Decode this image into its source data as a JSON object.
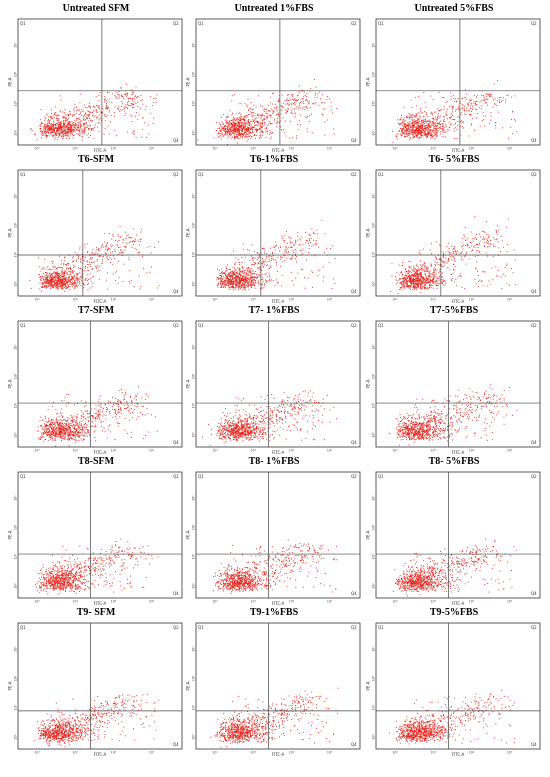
{
  "chart_data": [
    {
      "type": "scatter",
      "title": "Untreated SFM",
      "xlabel": "FITC-A",
      "ylabel": "PE-A",
      "quadrants": [
        "Q1",
        "Q2",
        "Q3",
        "Q4"
      ],
      "x_ticks": [
        "10²",
        "10³",
        "10⁴",
        "10⁵"
      ],
      "y_ticks": [
        "10²",
        "10³",
        "10⁴",
        "10⁵"
      ],
      "gate": {
        "x": 3.7,
        "y": 3.35
      },
      "xlim": [
        1.5,
        5.8
      ],
      "ylim": [
        1.5,
        5.8
      ]
    },
    {
      "type": "scatter",
      "title": "Untreated 1%FBS",
      "xlabel": "FITC-A",
      "ylabel": "PE-A",
      "quadrants": [
        "Q1",
        "Q2",
        "Q3",
        "Q4"
      ],
      "x_ticks": [
        "10²",
        "10³",
        "10⁴",
        "10⁵"
      ],
      "y_ticks": [
        "10²",
        "10³",
        "10⁴",
        "10⁵"
      ],
      "gate": {
        "x": 3.7,
        "y": 3.35
      },
      "xlim": [
        1.5,
        5.8
      ],
      "ylim": [
        1.5,
        5.8
      ]
    },
    {
      "type": "scatter",
      "title": "Untreated 5%FBS",
      "xlabel": "FITC-A",
      "ylabel": "PE-A",
      "quadrants": [
        "Q1",
        "Q2",
        "Q3",
        "Q4"
      ],
      "x_ticks": [
        "10²",
        "10³",
        "10⁴",
        "10⁵"
      ],
      "y_ticks": [
        "10²",
        "10³",
        "10⁴",
        "10⁵"
      ],
      "gate": {
        "x": 3.7,
        "y": 3.35
      },
      "xlim": [
        1.5,
        5.8
      ],
      "ylim": [
        1.5,
        5.8
      ]
    },
    {
      "type": "scatter",
      "title": "T6-SFM",
      "xlabel": "FITC-A",
      "ylabel": "PE-A",
      "quadrants": [
        "Q1",
        "Q2",
        "Q3",
        "Q4"
      ],
      "x_ticks": [
        "10²",
        "10³",
        "10⁴",
        "10⁵"
      ],
      "y_ticks": [
        "10²",
        "10³",
        "10⁴",
        "10⁵"
      ],
      "gate": {
        "x": 3.2,
        "y": 2.9
      },
      "xlim": [
        1.5,
        5.8
      ],
      "ylim": [
        1.5,
        5.8
      ]
    },
    {
      "type": "scatter",
      "title": "T6-1%FBS",
      "xlabel": "FITC-A",
      "ylabel": "PE-A",
      "quadrants": [
        "Q1",
        "Q2",
        "Q3",
        "Q4"
      ],
      "x_ticks": [
        "10²",
        "10³",
        "10⁴",
        "10⁵"
      ],
      "y_ticks": [
        "10²",
        "10³",
        "10⁴",
        "10⁵"
      ],
      "gate": {
        "x": 3.2,
        "y": 2.9
      },
      "xlim": [
        1.5,
        5.8
      ],
      "ylim": [
        1.5,
        5.8
      ]
    },
    {
      "type": "scatter",
      "title": "T6- 5%FBS",
      "xlabel": "FITC-A",
      "ylabel": "PE-A",
      "quadrants": [
        "Q1",
        "Q2",
        "Q3",
        "Q4"
      ],
      "x_ticks": [
        "10²",
        "10³",
        "10⁴",
        "10⁵"
      ],
      "y_ticks": [
        "10²",
        "10³",
        "10⁴",
        "10⁵"
      ],
      "gate": {
        "x": 3.2,
        "y": 2.9
      },
      "xlim": [
        1.5,
        5.8
      ],
      "ylim": [
        1.5,
        5.8
      ]
    },
    {
      "type": "scatter",
      "title": "T7-SFM",
      "xlabel": "FITC-A",
      "ylabel": "PE-A",
      "quadrants": [
        "Q1",
        "Q2",
        "Q3",
        "Q4"
      ],
      "x_ticks": [
        "10²",
        "10³",
        "10⁴",
        "10⁵"
      ],
      "y_ticks": [
        "10²",
        "10³",
        "10⁴",
        "10⁵"
      ],
      "gate": {
        "x": 3.4,
        "y": 3.0
      },
      "xlim": [
        1.5,
        5.8
      ],
      "ylim": [
        1.5,
        5.8
      ]
    },
    {
      "type": "scatter",
      "title": "T7- 1%FBS",
      "xlabel": "FITC-A",
      "ylabel": "PE-A",
      "quadrants": [
        "Q1",
        "Q2",
        "Q3",
        "Q4"
      ],
      "x_ticks": [
        "10²",
        "10³",
        "10⁴",
        "10⁵"
      ],
      "y_ticks": [
        "10²",
        "10³",
        "10⁴",
        "10⁵"
      ],
      "gate": {
        "x": 3.4,
        "y": 3.0
      },
      "xlim": [
        1.5,
        5.8
      ],
      "ylim": [
        1.5,
        5.8
      ]
    },
    {
      "type": "scatter",
      "title": "T7-5%FBS",
      "xlabel": "FITC-A",
      "ylabel": "PE-A",
      "quadrants": [
        "Q1",
        "Q2",
        "Q3",
        "Q4"
      ],
      "x_ticks": [
        "10²",
        "10³",
        "10⁴",
        "10⁵"
      ],
      "y_ticks": [
        "10²",
        "10³",
        "10⁴",
        "10⁵"
      ],
      "gate": {
        "x": 3.4,
        "y": 3.0
      },
      "xlim": [
        1.5,
        5.8
      ],
      "ylim": [
        1.5,
        5.8
      ]
    },
    {
      "type": "scatter",
      "title": "T8-SFM",
      "xlabel": "FITC-A",
      "ylabel": "PE-A",
      "quadrants": [
        "Q1",
        "Q2",
        "Q3",
        "Q4"
      ],
      "x_ticks": [
        "10²",
        "10³",
        "10⁴",
        "10⁵"
      ],
      "y_ticks": [
        "10²",
        "10³",
        "10⁴",
        "10⁵"
      ],
      "gate": {
        "x": 3.4,
        "y": 3.0
      },
      "xlim": [
        1.5,
        5.8
      ],
      "ylim": [
        1.5,
        5.8
      ]
    },
    {
      "type": "scatter",
      "title": "T8- 1%FBS",
      "xlabel": "FITC-A",
      "ylabel": "PE-A",
      "quadrants": [
        "Q1",
        "Q2",
        "Q3",
        "Q4"
      ],
      "x_ticks": [
        "10²",
        "10³",
        "10⁴",
        "10⁵"
      ],
      "y_ticks": [
        "10²",
        "10³",
        "10⁴",
        "10⁵"
      ],
      "gate": {
        "x": 3.4,
        "y": 3.0
      },
      "xlim": [
        1.5,
        5.8
      ],
      "ylim": [
        1.5,
        5.8
      ]
    },
    {
      "type": "scatter",
      "title": "T8- 5%FBS",
      "xlabel": "FITC-A",
      "ylabel": "PE-A",
      "quadrants": [
        "Q1",
        "Q2",
        "Q3",
        "Q4"
      ],
      "x_ticks": [
        "10²",
        "10³",
        "10⁴",
        "10⁵"
      ],
      "y_ticks": [
        "10²",
        "10³",
        "10⁴",
        "10⁵"
      ],
      "gate": {
        "x": 3.4,
        "y": 3.0
      },
      "xlim": [
        1.5,
        5.8
      ],
      "ylim": [
        1.5,
        5.8
      ]
    },
    {
      "type": "scatter",
      "title": "T9- SFM",
      "xlabel": "FITC-A",
      "ylabel": "PE-A",
      "quadrants": [
        "Q1",
        "Q2",
        "Q3",
        "Q4"
      ],
      "x_ticks": [
        "10²",
        "10³",
        "10⁴",
        "10⁵"
      ],
      "y_ticks": [
        "10²",
        "10³",
        "10⁴",
        "10⁵"
      ],
      "gate": {
        "x": 3.4,
        "y": 2.8
      },
      "xlim": [
        1.5,
        5.8
      ],
      "ylim": [
        1.5,
        5.8
      ]
    },
    {
      "type": "scatter",
      "title": "T9-1%FBS",
      "xlabel": "FITC-A",
      "ylabel": "PE-A",
      "quadrants": [
        "Q1",
        "Q2",
        "Q3",
        "Q4"
      ],
      "x_ticks": [
        "10²",
        "10³",
        "10⁴",
        "10⁵"
      ],
      "y_ticks": [
        "10²",
        "10³",
        "10⁴",
        "10⁵"
      ],
      "gate": {
        "x": 3.4,
        "y": 2.8
      },
      "xlim": [
        1.5,
        5.8
      ],
      "ylim": [
        1.5,
        5.8
      ]
    },
    {
      "type": "scatter",
      "title": "T9-5%FBS",
      "xlabel": "FITC-A",
      "ylabel": "PE-A",
      "quadrants": [
        "Q1",
        "Q2",
        "Q3",
        "Q4"
      ],
      "x_ticks": [
        "10²",
        "10³",
        "10⁴",
        "10⁵"
      ],
      "y_ticks": [
        "10²",
        "10³",
        "10⁴",
        "10⁵"
      ],
      "gate": {
        "x": 3.4,
        "y": 2.8
      },
      "xlim": [
        1.5,
        5.8
      ],
      "ylim": [
        1.5,
        5.8
      ]
    }
  ],
  "colors": {
    "dot": "#e3261f",
    "gate": "#444444",
    "frame": "#333333"
  }
}
